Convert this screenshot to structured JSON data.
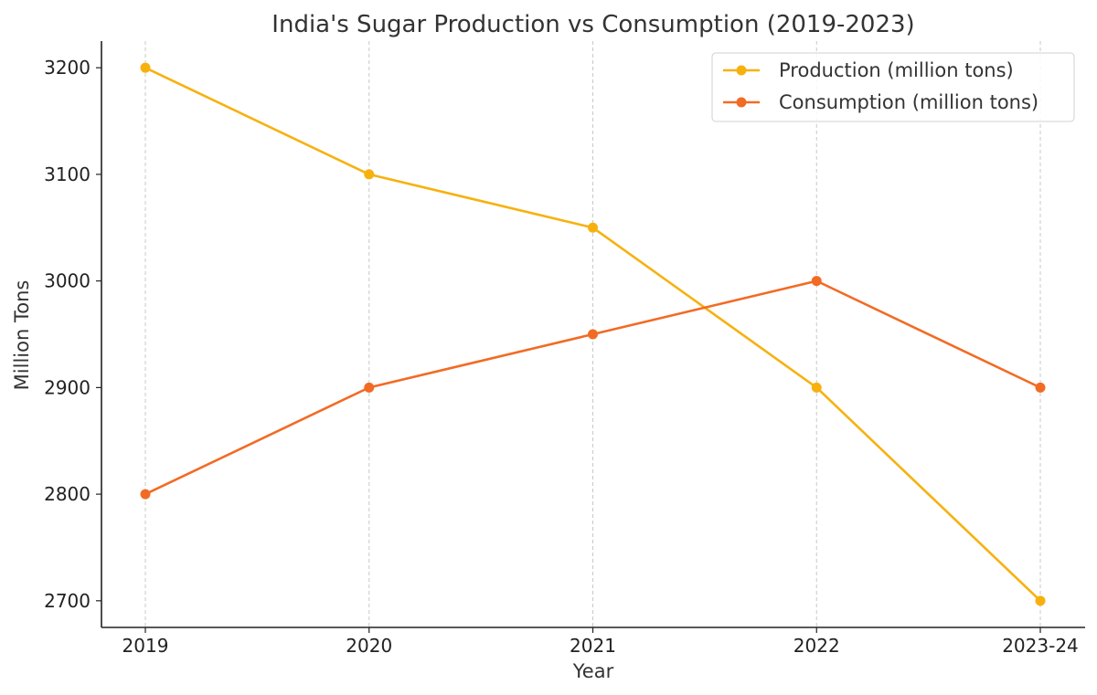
{
  "chart_data": {
    "type": "line",
    "title": "India's Sugar Production vs Consumption (2019-2023)",
    "xlabel": "Year",
    "ylabel": "Million Tons",
    "categories": [
      "2019",
      "2020",
      "2021",
      "2022",
      "2023-24"
    ],
    "ylim": [
      2675,
      3225
    ],
    "yticks": [
      2700,
      2800,
      2900,
      3000,
      3100,
      3200
    ],
    "grid": "vertical-dashed",
    "legend_position": "top-right",
    "series": [
      {
        "name": "Production (million tons)",
        "color": "#F7B10F",
        "values": [
          3200,
          3100,
          3050,
          2900,
          2700
        ]
      },
      {
        "name": "Consumption (million tons)",
        "color": "#F26B24",
        "values": [
          2800,
          2900,
          2950,
          3000,
          2900
        ]
      }
    ]
  }
}
